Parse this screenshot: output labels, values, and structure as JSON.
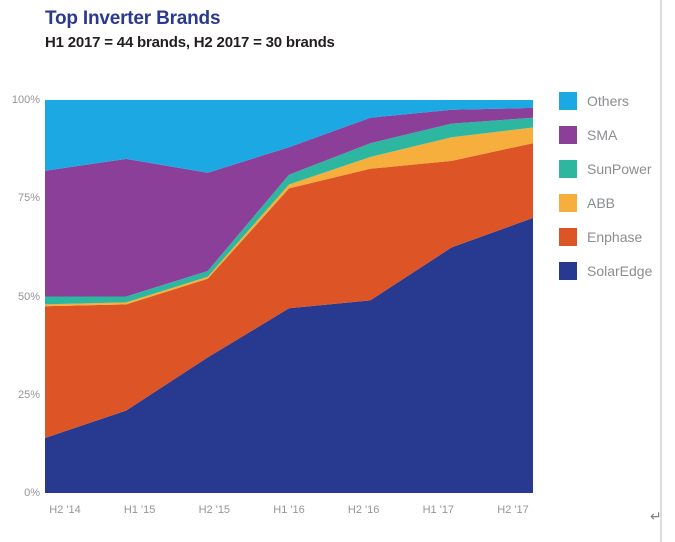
{
  "chart_data": {
    "type": "area",
    "stacked": true,
    "title": "Top Inverter Brands",
    "subtitle": "H1 2017 = 44 brands, H2 2017 = 30 brands",
    "title_color": "#2b3990",
    "categories": [
      "H2 '14",
      "H1 '15",
      "H2 '15",
      "H1 '16",
      "H2 '16",
      "H1 '17",
      "H2 '17"
    ],
    "series": [
      {
        "name": "SolarEdge",
        "color": "#273a8f",
        "values": [
          14,
          21,
          34.5,
          47,
          49,
          62.5,
          70
        ]
      },
      {
        "name": "Enphase",
        "color": "#dd5426",
        "values": [
          33.5,
          27,
          20,
          30.5,
          33.5,
          22,
          19
        ]
      },
      {
        "name": "ABB",
        "color": "#f6ae3d",
        "values": [
          0.5,
          0.5,
          0.5,
          1,
          3,
          6,
          4
        ]
      },
      {
        "name": "SunPower",
        "color": "#2eb7a0",
        "values": [
          2,
          1.5,
          1.5,
          2.5,
          3.5,
          3.5,
          2.5
        ]
      },
      {
        "name": "SMA",
        "color": "#8b3f99",
        "values": [
          32,
          35,
          25,
          7,
          6.5,
          3.5,
          2.5
        ]
      },
      {
        "name": "Others",
        "color": "#1ca8e2",
        "values": [
          18,
          15,
          18.5,
          12,
          4.5,
          2.5,
          2
        ]
      }
    ],
    "legend_order_top_to_bottom": [
      "Others",
      "SMA",
      "SunPower",
      "ABB",
      "Enphase",
      "SolarEdge"
    ],
    "legend_position": "right",
    "grid": false,
    "ylim": [
      0,
      100
    ],
    "yticks": [
      "0%",
      "25%",
      "50%",
      "75%",
      "100%"
    ],
    "ytick_values": [
      0,
      25,
      50,
      75,
      100
    ],
    "axis_label_color": "#939598",
    "legend_label_color": "#8b8d90"
  },
  "page": {
    "return_mark": "↵"
  }
}
